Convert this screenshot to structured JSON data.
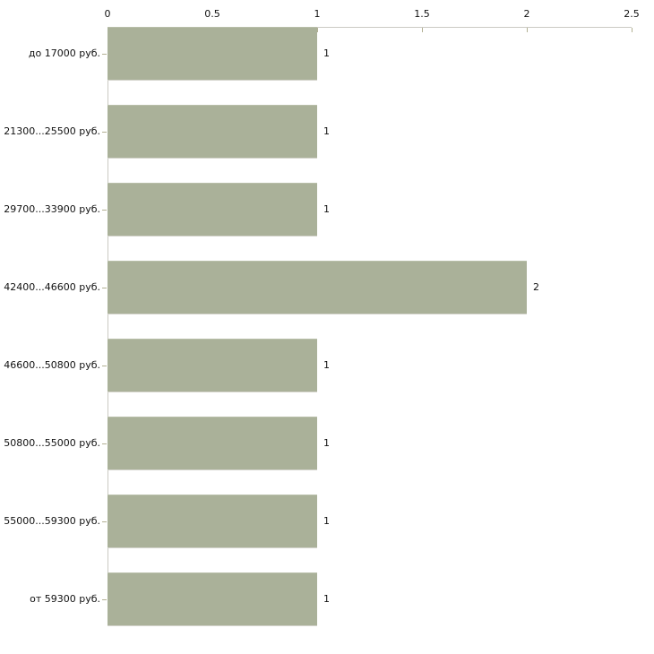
{
  "chart_data": {
    "type": "bar",
    "orientation": "horizontal",
    "title": "",
    "xlabel": "",
    "ylabel": "",
    "categories": [
      "до 17000 руб.",
      "21300...25500 руб.",
      "29700...33900 руб.",
      "42400...46600 руб.",
      "46600...50800 руб.",
      "50800...55000 руб.",
      "55000...59300 руб.",
      "от 59300 руб."
    ],
    "values": [
      1,
      1,
      1,
      2,
      1,
      1,
      1,
      1
    ],
    "value_labels": [
      "1",
      "1",
      "1",
      "2",
      "1",
      "1",
      "1",
      "1"
    ],
    "xlim": [
      0,
      2.5
    ],
    "x_ticks": [
      0,
      0.5,
      1,
      1.5,
      2,
      2.5
    ],
    "x_tick_labels": [
      "0",
      "0.5",
      "1",
      "1.5",
      "2",
      "2.5"
    ],
    "grid": false,
    "legend": false,
    "axis_position": "top",
    "bar_color": "#aab199",
    "axis_line_color": "#cbcac3",
    "tick_mark_color": "#b2b093",
    "text_color": "#111111",
    "background_color": "#ffffff"
  }
}
